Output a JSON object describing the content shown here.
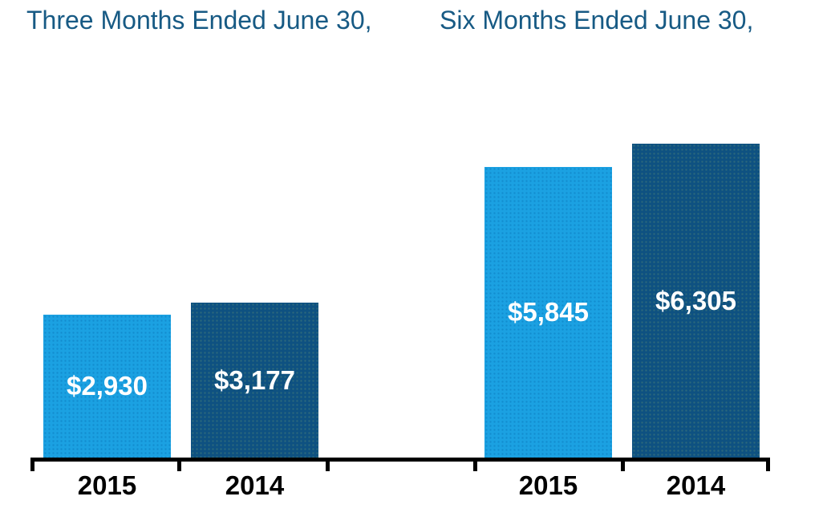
{
  "chart_data": {
    "type": "bar",
    "grid": false,
    "legend": "none",
    "groups": [
      {
        "title": "Three Months Ended June 30,",
        "categories": [
          "2015",
          "2014"
        ],
        "series": [
          {
            "category": "2015",
            "value": 2930,
            "label": "$2,930"
          },
          {
            "category": "2014",
            "value": 3177,
            "label": "$3,177"
          }
        ]
      },
      {
        "title": "Six Months Ended June 30,",
        "categories": [
          "2015",
          "2014"
        ],
        "series": [
          {
            "category": "2015",
            "value": 5845,
            "label": "$5,845"
          },
          {
            "category": "2014",
            "value": 6305,
            "label": "$6,305"
          }
        ]
      }
    ],
    "colors": {
      "bar_2015": "#1BA1E2",
      "bar_2014": "#0E5181",
      "title_text": "#175A84",
      "value_label_text": "#FFFFFF",
      "year_label_text": "#000000",
      "axis_line": "#000000"
    }
  }
}
